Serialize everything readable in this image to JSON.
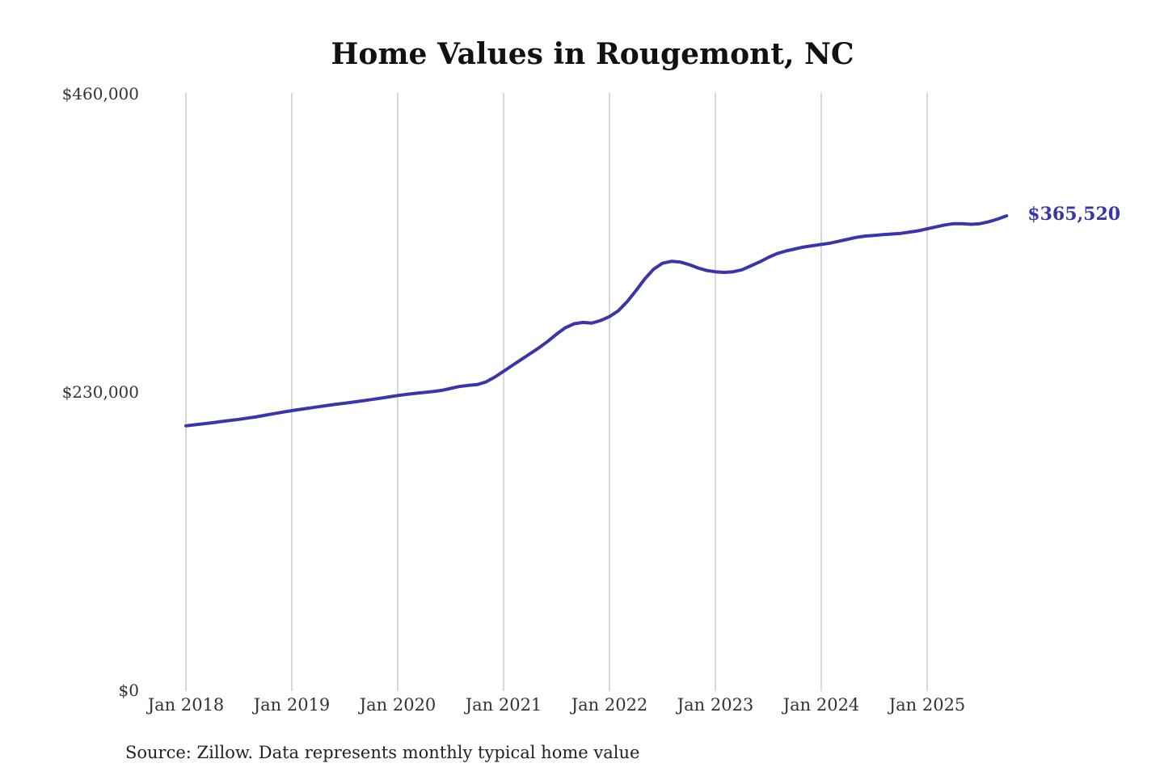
{
  "chart_data": {
    "type": "line",
    "title": "Home Values in Rougemont, NC",
    "source": "Source: Zillow. Data represents monthly typical home value",
    "end_label": "$365,520",
    "final_value": 365520,
    "ylim": [
      0,
      460000
    ],
    "y_tick_labels": [
      "$0",
      "$230,000",
      "$460,000"
    ],
    "x_tick_labels": [
      "Jan 2018",
      "Jan 2019",
      "Jan 2020",
      "Jan 2021",
      "Jan 2022",
      "Jan 2023",
      "Jan 2024",
      "Jan 2025"
    ],
    "line_color": "#3a35a8",
    "gridline_color": "#cccccc",
    "x": [
      "2018-01",
      "2018-02",
      "2018-03",
      "2018-04",
      "2018-05",
      "2018-06",
      "2018-07",
      "2018-08",
      "2018-09",
      "2018-10",
      "2018-11",
      "2018-12",
      "2019-01",
      "2019-02",
      "2019-03",
      "2019-04",
      "2019-05",
      "2019-06",
      "2019-07",
      "2019-08",
      "2019-09",
      "2019-10",
      "2019-11",
      "2019-12",
      "2020-01",
      "2020-02",
      "2020-03",
      "2020-04",
      "2020-05",
      "2020-06",
      "2020-07",
      "2020-08",
      "2020-09",
      "2020-10",
      "2020-11",
      "2020-12",
      "2021-01",
      "2021-02",
      "2021-03",
      "2021-04",
      "2021-05",
      "2021-06",
      "2021-07",
      "2021-08",
      "2021-09",
      "2021-10",
      "2021-11",
      "2021-12",
      "2022-01",
      "2022-02",
      "2022-03",
      "2022-04",
      "2022-05",
      "2022-06",
      "2022-07",
      "2022-08",
      "2022-09",
      "2022-10",
      "2022-11",
      "2022-12",
      "2023-01",
      "2023-02",
      "2023-03",
      "2023-04",
      "2023-05",
      "2023-06",
      "2023-07",
      "2023-08",
      "2023-09",
      "2023-10",
      "2023-11",
      "2023-12",
      "2024-01",
      "2024-02",
      "2024-03",
      "2024-04",
      "2024-05",
      "2024-06",
      "2024-07",
      "2024-08",
      "2024-09",
      "2024-10",
      "2024-11",
      "2024-12",
      "2025-01",
      "2025-02",
      "2025-03",
      "2025-04",
      "2025-05",
      "2025-06",
      "2025-07",
      "2025-08",
      "2025-09",
      "2025-10"
    ],
    "values": [
      204000,
      204800,
      205600,
      206400,
      207300,
      208200,
      209000,
      210000,
      211000,
      212200,
      213400,
      214600,
      215700,
      216700,
      217700,
      218700,
      219700,
      220600,
      221400,
      222300,
      223200,
      224200,
      225200,
      226300,
      227300,
      228200,
      229000,
      229700,
      230400,
      231300,
      232800,
      234300,
      235100,
      235700,
      237800,
      241500,
      246000,
      250500,
      255000,
      259500,
      264000,
      269000,
      274500,
      279500,
      282500,
      283500,
      283000,
      285000,
      288000,
      292500,
      299500,
      308000,
      317000,
      324500,
      329000,
      330500,
      330000,
      328000,
      325500,
      323500,
      322500,
      322000,
      322500,
      324000,
      327000,
      330000,
      333500,
      336500,
      338500,
      340000,
      341500,
      342500,
      343500,
      344500,
      346000,
      347500,
      349000,
      350000,
      350500,
      351000,
      351500,
      352000,
      353000,
      354000,
      355500,
      357000,
      358500,
      359500,
      359500,
      359000,
      359500,
      361000,
      363000,
      365520
    ]
  }
}
